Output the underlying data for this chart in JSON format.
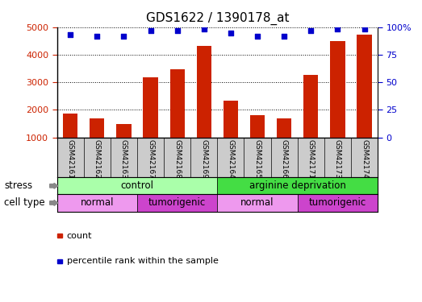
{
  "title": "GDS1622 / 1390178_at",
  "samples": [
    "GSM42161",
    "GSM42162",
    "GSM42163",
    "GSM42167",
    "GSM42168",
    "GSM42169",
    "GSM42164",
    "GSM42165",
    "GSM42166",
    "GSM42171",
    "GSM42173",
    "GSM42174"
  ],
  "counts": [
    1850,
    1680,
    1480,
    3170,
    3480,
    4320,
    2330,
    1790,
    1680,
    3260,
    4490,
    4730
  ],
  "percentile_ranks": [
    93,
    92,
    92,
    97,
    97,
    98,
    95,
    92,
    92,
    97,
    98,
    98
  ],
  "ylim_left": [
    1000,
    5000
  ],
  "ylim_right": [
    0,
    100
  ],
  "yticks_left": [
    1000,
    2000,
    3000,
    4000,
    5000
  ],
  "yticks_right": [
    0,
    25,
    50,
    75,
    100
  ],
  "bar_color": "#cc2200",
  "dot_color": "#0000cc",
  "bg_color": "#ffffff",
  "grid_color": "#000000",
  "sample_bg_color": "#cccccc",
  "stress_groups": [
    {
      "label": "control",
      "start": 0,
      "end": 6,
      "color": "#aaffaa"
    },
    {
      "label": "arginine deprivation",
      "start": 6,
      "end": 12,
      "color": "#44dd44"
    }
  ],
  "cell_type_groups": [
    {
      "label": "normal",
      "start": 0,
      "end": 3,
      "color": "#ee99ee"
    },
    {
      "label": "tumorigenic",
      "start": 3,
      "end": 6,
      "color": "#cc44cc"
    },
    {
      "label": "normal",
      "start": 6,
      "end": 9,
      "color": "#ee99ee"
    },
    {
      "label": "tumorigenic",
      "start": 9,
      "end": 12,
      "color": "#cc44cc"
    }
  ],
  "legend_items": [
    {
      "label": "count",
      "color": "#cc2200",
      "marker": "s"
    },
    {
      "label": "percentile rank within the sample",
      "color": "#0000cc",
      "marker": "s"
    }
  ],
  "label_stress": "stress",
  "label_cell_type": "cell type"
}
